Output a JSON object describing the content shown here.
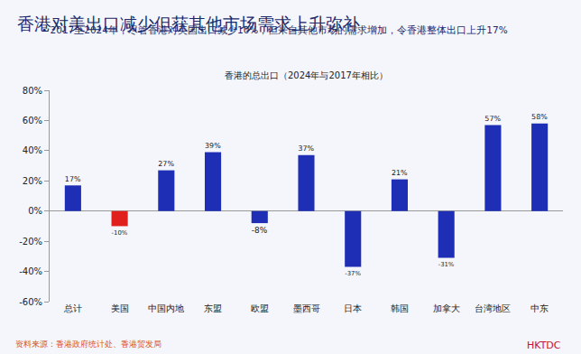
{
  "chart_data": {
    "type": "bar",
    "title": "香港对美出口减少但获其他市场需求上升弥补",
    "subtitle": "• 2017至2024年，尽管香港对美国出口减少10%，但来自其他市场的需求增加，令香港整体出口上升17%",
    "annotations": [
      "香港的总出口（2024年与2017年相比）",
      "资料来源：香港政府统计处、香港贸发局",
      "HKTDC"
    ],
    "categories": [
      "总计",
      "美国",
      "中国内地",
      "东盟",
      "欧盟",
      "墨西哥",
      "日本",
      "韩国",
      "加拿大",
      "台湾地区",
      "中东"
    ],
    "values": [
      17,
      -10,
      27,
      39,
      -8,
      37,
      -37,
      21,
      -31,
      57,
      58
    ],
    "value_labels": [
      "17%",
      "-10%",
      "27%",
      "39%",
      "-8%",
      "37%",
      "-37%",
      "21%",
      "-31%",
      "57%",
      "58%"
    ],
    "colors": [
      "#1f2fb5",
      "#e0201c",
      "#1f2fb5",
      "#1f2fb5",
      "#1f2fb5",
      "#1f2fb5",
      "#1f2fb5",
      "#1f2fb5",
      "#1f2fb5",
      "#1f2fb5",
      "#1f2fb5"
    ],
    "ylim": [
      -60,
      80
    ],
    "yticks": [
      {
        "value": -60,
        "label": "-60%"
      },
      {
        "value": -40,
        "label": "-40%"
      },
      {
        "value": -20,
        "label": "-20%"
      },
      {
        "value": 0,
        "label": "0%"
      },
      {
        "value": 20,
        "label": "20%"
      },
      {
        "value": 40,
        "label": "40%"
      },
      {
        "value": 60,
        "label": "60%"
      },
      {
        "value": 80,
        "label": "80%"
      }
    ],
    "grid": false,
    "data_labels": true
  }
}
